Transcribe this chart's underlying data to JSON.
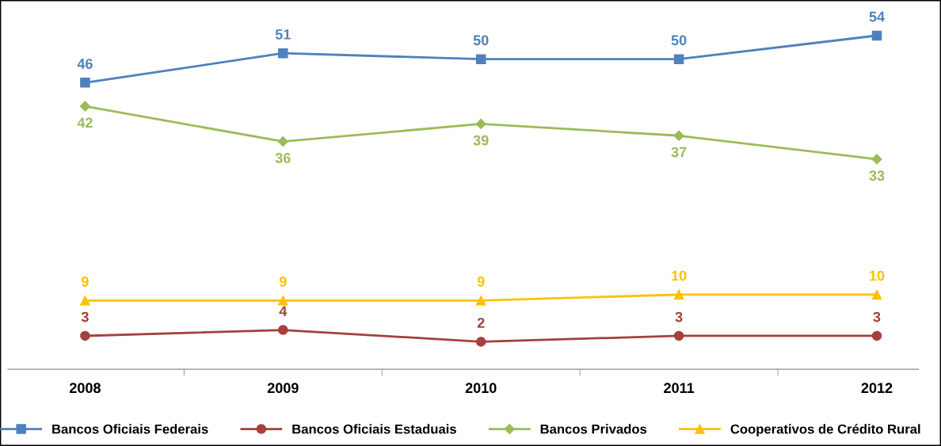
{
  "chart_data": {
    "type": "line",
    "categories": [
      "2008",
      "2009",
      "2010",
      "2011",
      "2012"
    ],
    "series": [
      {
        "name": "Bancos Oficiais Federais",
        "color": "#4f81bd",
        "marker": "square",
        "values": [
          46,
          51,
          50,
          50,
          54
        ]
      },
      {
        "name": "Bancos Oficiais Estaduais",
        "color": "#a5403d",
        "marker": "circle",
        "values": [
          3,
          4,
          2,
          3,
          3
        ]
      },
      {
        "name": "Bancos Privados",
        "color": "#9bbb59",
        "marker": "diamond",
        "values": [
          42,
          36,
          39,
          37,
          33
        ]
      },
      {
        "name": "Cooperativos de Crédito Rural",
        "color": "#ffc000",
        "marker": "triangle",
        "values": [
          9,
          9,
          9,
          10,
          10
        ]
      }
    ],
    "tick_labels": "x",
    "data_labels": true,
    "legend": "bottom",
    "grid": false,
    "line_style": "solid"
  }
}
